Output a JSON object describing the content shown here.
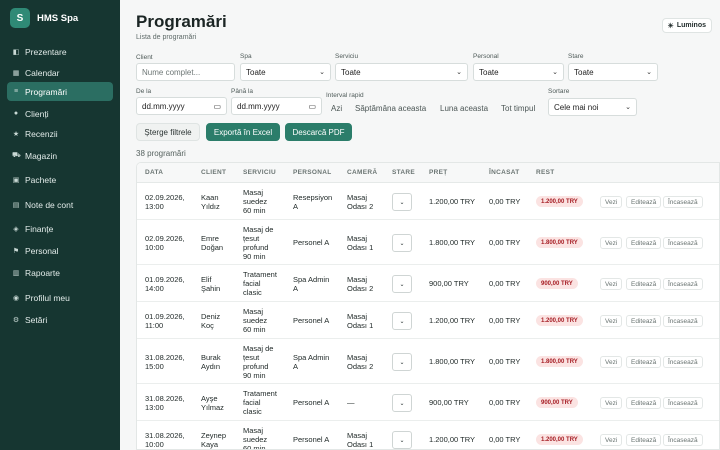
{
  "brand": {
    "logo": "S",
    "name": "HMS Spa"
  },
  "sidebar": {
    "items": [
      {
        "label": "Prezentare",
        "icon": "grid-icon",
        "glyph": "◧"
      },
      {
        "label": "Calendar",
        "icon": "calendar-icon",
        "glyph": "▦"
      },
      {
        "label": "Programări",
        "icon": "list-icon",
        "glyph": "≡"
      },
      {
        "label": "Clienți",
        "icon": "person-icon",
        "glyph": "●"
      },
      {
        "label": "Recenzii",
        "icon": "star-icon",
        "glyph": "★"
      },
      {
        "label": "Magazin",
        "icon": "cart-icon",
        "glyph": "⛟"
      },
      {
        "label": "Pachete",
        "icon": "package-icon",
        "glyph": "▣"
      },
      {
        "label": "Note de cont",
        "icon": "receipt-icon",
        "glyph": "▤"
      },
      {
        "label": "Finanțe",
        "icon": "money-icon",
        "glyph": "◈"
      },
      {
        "label": "Personal",
        "icon": "flag-icon",
        "glyph": "⚑"
      },
      {
        "label": "Rapoarte",
        "icon": "chart-icon",
        "glyph": "▥"
      },
      {
        "label": "Profilul meu",
        "icon": "profile-icon",
        "glyph": "◉"
      },
      {
        "label": "Setări",
        "icon": "gear-icon",
        "glyph": "⚙"
      }
    ],
    "active_index": 2
  },
  "header": {
    "title": "Programări",
    "subtitle": "Lista de programări",
    "theme_label": "Luminos",
    "theme_icon": "sun-icon"
  },
  "filters": {
    "client_label": "Client",
    "client_placeholder": "Nume complet...",
    "spa_label": "Spa",
    "spa_value": "Toate",
    "service_label": "Serviciu",
    "service_value": "Toate",
    "staff_label": "Personal",
    "staff_value": "Toate",
    "status_label": "Stare",
    "status_value": "Toate",
    "from_label": "De la",
    "from_value": "dd.mm.yyyy",
    "to_label": "Până la",
    "to_value": "dd.mm.yyyy",
    "quick_label": "Interval rapid",
    "quick_options": [
      "Azi",
      "Săptămâna aceasta",
      "Luna aceasta",
      "Tot timpul"
    ],
    "sort_label": "Sortare",
    "sort_value": "Cele mai noi",
    "clear_label": "Șterge filtrele",
    "export_excel_label": "Exportă în Excel",
    "download_pdf_label": "Descarcă PDF"
  },
  "count_text": "38 programări",
  "table": {
    "headers": [
      "DATA",
      "CLIENT",
      "SERVICIU",
      "PERSONAL",
      "CAMERĂ",
      "STARE",
      "PREȚ",
      "ÎNCASAT",
      "REST"
    ],
    "action_labels": [
      "Vezi",
      "Editează",
      "Încasează"
    ],
    "rows": [
      {
        "date": [
          "02.09.2026,",
          "13:00"
        ],
        "client": [
          "Kaan",
          "Yıldız"
        ],
        "service": [
          "Masaj",
          "suedez",
          "60 min"
        ],
        "staff": [
          "Resepsiyon",
          "A"
        ],
        "room": [
          "Masaj",
          "Odası 2"
        ],
        "price": "1.200,00 TRY",
        "paid": "0,00 TRY",
        "rest": "1.200,00 TRY"
      },
      {
        "date": [
          "02.09.2026,",
          "10:00"
        ],
        "client": [
          "Emre",
          "Doğan"
        ],
        "service": [
          "Masaj de",
          "țesut",
          "profund",
          "90 min"
        ],
        "staff": [
          "Personel A"
        ],
        "room": [
          "Masaj",
          "Odası 1"
        ],
        "price": "1.800,00 TRY",
        "paid": "0,00 TRY",
        "rest": "1.800,00 TRY"
      },
      {
        "date": [
          "01.09.2026,",
          "14:00"
        ],
        "client": [
          "Elif",
          "Şahin"
        ],
        "service": [
          "Tratament",
          "facial",
          "clasic"
        ],
        "staff": [
          "Spa Admin",
          "A"
        ],
        "room": [
          "Masaj",
          "Odası 2"
        ],
        "price": "900,00 TRY",
        "paid": "0,00 TRY",
        "rest": "900,00 TRY"
      },
      {
        "date": [
          "01.09.2026,",
          "11:00"
        ],
        "client": [
          "Deniz",
          "Koç"
        ],
        "service": [
          "Masaj",
          "suedez",
          "60 min"
        ],
        "staff": [
          "Personel A"
        ],
        "room": [
          "Masaj",
          "Odası 1"
        ],
        "price": "1.200,00 TRY",
        "paid": "0,00 TRY",
        "rest": "1.200,00 TRY"
      },
      {
        "date": [
          "31.08.2026,",
          "15:00"
        ],
        "client": [
          "Burak",
          "Aydın"
        ],
        "service": [
          "Masaj de",
          "țesut",
          "profund",
          "90 min"
        ],
        "staff": [
          "Spa Admin",
          "A"
        ],
        "room": [
          "Masaj",
          "Odası 2"
        ],
        "price": "1.800,00 TRY",
        "paid": "0,00 TRY",
        "rest": "1.800,00 TRY"
      },
      {
        "date": [
          "31.08.2026,",
          "13:00"
        ],
        "client": [
          "Ayşe",
          "Yılmaz"
        ],
        "service": [
          "Tratament",
          "facial",
          "clasic"
        ],
        "staff": [
          "Personel A"
        ],
        "room": [
          "—"
        ],
        "price": "900,00 TRY",
        "paid": "0,00 TRY",
        "rest": "900,00 TRY"
      },
      {
        "date": [
          "31.08.2026,",
          "10:00"
        ],
        "client": [
          "Zeynep",
          "Kaya"
        ],
        "service": [
          "Masaj",
          "suedez",
          "60 min"
        ],
        "staff": [
          "Personel A"
        ],
        "room": [
          "Masaj",
          "Odası 1"
        ],
        "price": "1.200,00 TRY",
        "paid": "0,00 TRY",
        "rest": "1.200,00 TRY"
      }
    ]
  },
  "colors": {
    "sidebar_bg": "#163631",
    "accent": "#2b7d6a",
    "active_nav": "#2b6e62",
    "rest_badge_bg": "#fbe3e2",
    "rest_badge_text": "#a61d24"
  }
}
